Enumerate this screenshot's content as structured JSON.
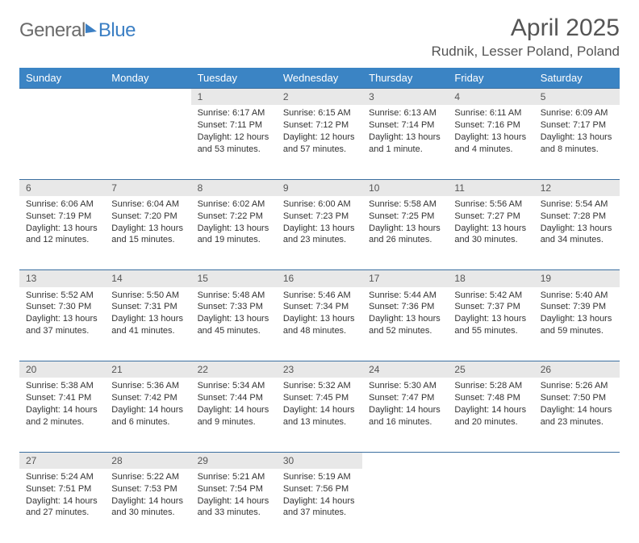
{
  "brand": {
    "general": "General",
    "blue": "Blue"
  },
  "title": "April 2025",
  "location": "Rudnik, Lesser Poland, Poland",
  "colors": {
    "header_bg": "#3b84c4",
    "header_text": "#ffffff",
    "daynum_bg": "#e8e8e8",
    "row_border": "#3b6fa0",
    "text": "#333333",
    "title_text": "#555555"
  },
  "days_of_week": [
    "Sunday",
    "Monday",
    "Tuesday",
    "Wednesday",
    "Thursday",
    "Friday",
    "Saturday"
  ],
  "weeks": [
    [
      null,
      null,
      {
        "n": "1",
        "sr": "Sunrise: 6:17 AM",
        "ss": "Sunset: 7:11 PM",
        "dl": "Daylight: 12 hours and 53 minutes."
      },
      {
        "n": "2",
        "sr": "Sunrise: 6:15 AM",
        "ss": "Sunset: 7:12 PM",
        "dl": "Daylight: 12 hours and 57 minutes."
      },
      {
        "n": "3",
        "sr": "Sunrise: 6:13 AM",
        "ss": "Sunset: 7:14 PM",
        "dl": "Daylight: 13 hours and 1 minute."
      },
      {
        "n": "4",
        "sr": "Sunrise: 6:11 AM",
        "ss": "Sunset: 7:16 PM",
        "dl": "Daylight: 13 hours and 4 minutes."
      },
      {
        "n": "5",
        "sr": "Sunrise: 6:09 AM",
        "ss": "Sunset: 7:17 PM",
        "dl": "Daylight: 13 hours and 8 minutes."
      }
    ],
    [
      {
        "n": "6",
        "sr": "Sunrise: 6:06 AM",
        "ss": "Sunset: 7:19 PM",
        "dl": "Daylight: 13 hours and 12 minutes."
      },
      {
        "n": "7",
        "sr": "Sunrise: 6:04 AM",
        "ss": "Sunset: 7:20 PM",
        "dl": "Daylight: 13 hours and 15 minutes."
      },
      {
        "n": "8",
        "sr": "Sunrise: 6:02 AM",
        "ss": "Sunset: 7:22 PM",
        "dl": "Daylight: 13 hours and 19 minutes."
      },
      {
        "n": "9",
        "sr": "Sunrise: 6:00 AM",
        "ss": "Sunset: 7:23 PM",
        "dl": "Daylight: 13 hours and 23 minutes."
      },
      {
        "n": "10",
        "sr": "Sunrise: 5:58 AM",
        "ss": "Sunset: 7:25 PM",
        "dl": "Daylight: 13 hours and 26 minutes."
      },
      {
        "n": "11",
        "sr": "Sunrise: 5:56 AM",
        "ss": "Sunset: 7:27 PM",
        "dl": "Daylight: 13 hours and 30 minutes."
      },
      {
        "n": "12",
        "sr": "Sunrise: 5:54 AM",
        "ss": "Sunset: 7:28 PM",
        "dl": "Daylight: 13 hours and 34 minutes."
      }
    ],
    [
      {
        "n": "13",
        "sr": "Sunrise: 5:52 AM",
        "ss": "Sunset: 7:30 PM",
        "dl": "Daylight: 13 hours and 37 minutes."
      },
      {
        "n": "14",
        "sr": "Sunrise: 5:50 AM",
        "ss": "Sunset: 7:31 PM",
        "dl": "Daylight: 13 hours and 41 minutes."
      },
      {
        "n": "15",
        "sr": "Sunrise: 5:48 AM",
        "ss": "Sunset: 7:33 PM",
        "dl": "Daylight: 13 hours and 45 minutes."
      },
      {
        "n": "16",
        "sr": "Sunrise: 5:46 AM",
        "ss": "Sunset: 7:34 PM",
        "dl": "Daylight: 13 hours and 48 minutes."
      },
      {
        "n": "17",
        "sr": "Sunrise: 5:44 AM",
        "ss": "Sunset: 7:36 PM",
        "dl": "Daylight: 13 hours and 52 minutes."
      },
      {
        "n": "18",
        "sr": "Sunrise: 5:42 AM",
        "ss": "Sunset: 7:37 PM",
        "dl": "Daylight: 13 hours and 55 minutes."
      },
      {
        "n": "19",
        "sr": "Sunrise: 5:40 AM",
        "ss": "Sunset: 7:39 PM",
        "dl": "Daylight: 13 hours and 59 minutes."
      }
    ],
    [
      {
        "n": "20",
        "sr": "Sunrise: 5:38 AM",
        "ss": "Sunset: 7:41 PM",
        "dl": "Daylight: 14 hours and 2 minutes."
      },
      {
        "n": "21",
        "sr": "Sunrise: 5:36 AM",
        "ss": "Sunset: 7:42 PM",
        "dl": "Daylight: 14 hours and 6 minutes."
      },
      {
        "n": "22",
        "sr": "Sunrise: 5:34 AM",
        "ss": "Sunset: 7:44 PM",
        "dl": "Daylight: 14 hours and 9 minutes."
      },
      {
        "n": "23",
        "sr": "Sunrise: 5:32 AM",
        "ss": "Sunset: 7:45 PM",
        "dl": "Daylight: 14 hours and 13 minutes."
      },
      {
        "n": "24",
        "sr": "Sunrise: 5:30 AM",
        "ss": "Sunset: 7:47 PM",
        "dl": "Daylight: 14 hours and 16 minutes."
      },
      {
        "n": "25",
        "sr": "Sunrise: 5:28 AM",
        "ss": "Sunset: 7:48 PM",
        "dl": "Daylight: 14 hours and 20 minutes."
      },
      {
        "n": "26",
        "sr": "Sunrise: 5:26 AM",
        "ss": "Sunset: 7:50 PM",
        "dl": "Daylight: 14 hours and 23 minutes."
      }
    ],
    [
      {
        "n": "27",
        "sr": "Sunrise: 5:24 AM",
        "ss": "Sunset: 7:51 PM",
        "dl": "Daylight: 14 hours and 27 minutes."
      },
      {
        "n": "28",
        "sr": "Sunrise: 5:22 AM",
        "ss": "Sunset: 7:53 PM",
        "dl": "Daylight: 14 hours and 30 minutes."
      },
      {
        "n": "29",
        "sr": "Sunrise: 5:21 AM",
        "ss": "Sunset: 7:54 PM",
        "dl": "Daylight: 14 hours and 33 minutes."
      },
      {
        "n": "30",
        "sr": "Sunrise: 5:19 AM",
        "ss": "Sunset: 7:56 PM",
        "dl": "Daylight: 14 hours and 37 minutes."
      },
      null,
      null,
      null
    ]
  ]
}
